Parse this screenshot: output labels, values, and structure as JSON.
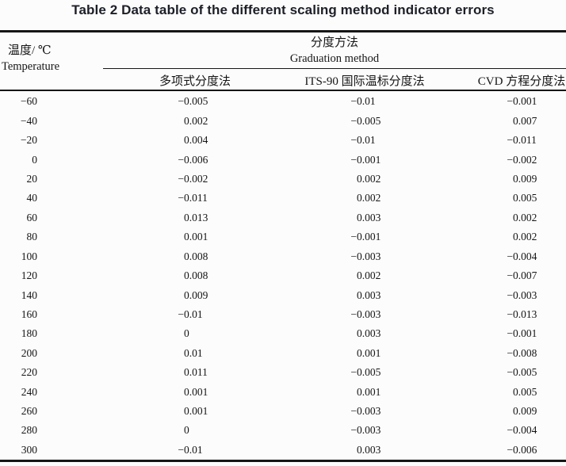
{
  "page": {
    "title": "Table 2 Data table of the different scaling method indicator errors"
  },
  "colors": {
    "background": "#fcfcfc",
    "ink": "#151515",
    "title_ink": "#1d1f28",
    "rule": "#161616"
  },
  "table": {
    "row_header": {
      "zh": "温度/ ℃",
      "en": "Temperature"
    },
    "group_header": {
      "zh": "分度方法",
      "en": "Graduation method"
    },
    "columns": [
      "多项式分度法",
      "ITS-90 国际温标分度法",
      "CVD 方程分度法"
    ],
    "rows": [
      [
        "-60",
        "-0.005",
        "-0.01",
        "-0.001"
      ],
      [
        "-40",
        "0.002",
        "-0.005",
        "0.007"
      ],
      [
        "-20",
        "0.004",
        "-0.01",
        "-0.011"
      ],
      [
        "0",
        "-0.006",
        "-0.001",
        "-0.002"
      ],
      [
        "20",
        "-0.002",
        "0.002",
        "0.009"
      ],
      [
        "40",
        "-0.011",
        "0.002",
        "0.005"
      ],
      [
        "60",
        "0.013",
        "0.003",
        "0.002"
      ],
      [
        "80",
        "0.001",
        "-0.001",
        "0.002"
      ],
      [
        "100",
        "0.008",
        "-0.003",
        "-0.004"
      ],
      [
        "120",
        "0.008",
        "0.002",
        "-0.007"
      ],
      [
        "140",
        "0.009",
        "0.003",
        "-0.003"
      ],
      [
        "160",
        "-0.01",
        "-0.003",
        "-0.013"
      ],
      [
        "180",
        "0",
        "0.003",
        "-0.001"
      ],
      [
        "200",
        "0.01",
        "0.001",
        "-0.008"
      ],
      [
        "220",
        "0.011",
        "-0.005",
        "-0.005"
      ],
      [
        "240",
        "0.001",
        "0.001",
        "0.005"
      ],
      [
        "260",
        "0.001",
        "-0.003",
        "0.009"
      ],
      [
        "280",
        "0",
        "-0.003",
        "-0.004"
      ],
      [
        "300",
        "-0.01",
        "0.003",
        "-0.006"
      ]
    ]
  },
  "chart_data": {
    "type": "table",
    "title": "Table 2 Data table of the different scaling method indicator errors",
    "categories": [
      -60,
      -40,
      -20,
      0,
      20,
      40,
      60,
      80,
      100,
      120,
      140,
      160,
      180,
      200,
      220,
      240,
      260,
      280,
      300
    ],
    "xlabel": "温度/℃ (Temperature)",
    "series": [
      {
        "name": "多项式分度法",
        "values": [
          -0.005,
          0.002,
          0.004,
          -0.006,
          -0.002,
          -0.011,
          0.013,
          0.001,
          0.008,
          0.008,
          0.009,
          -0.01,
          0,
          0.01,
          0.011,
          0.001,
          0.001,
          0,
          -0.01
        ]
      },
      {
        "name": "ITS-90国际温标分度法",
        "values": [
          -0.01,
          -0.005,
          -0.01,
          -0.001,
          0.002,
          0.002,
          0.003,
          -0.001,
          -0.003,
          0.002,
          0.003,
          -0.003,
          0.003,
          0.001,
          -0.005,
          0.001,
          -0.003,
          -0.003,
          0.003
        ]
      },
      {
        "name": "CVD方程分度法",
        "values": [
          -0.001,
          0.007,
          -0.011,
          -0.002,
          0.009,
          0.005,
          0.002,
          0.002,
          -0.004,
          -0.007,
          -0.003,
          -0.013,
          -0.001,
          -0.008,
          -0.005,
          0.005,
          0.009,
          -0.004,
          -0.006
        ]
      }
    ]
  }
}
